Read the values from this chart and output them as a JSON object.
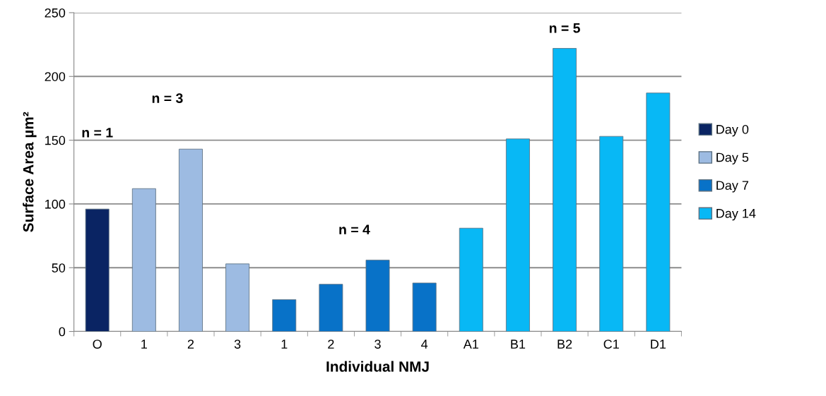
{
  "chart_data": {
    "type": "bar",
    "xlabel": "Individual NMJ",
    "ylabel": "Surface Area µm²",
    "categories": [
      "O",
      "1",
      "2",
      "3",
      "1",
      "2",
      "3",
      "4",
      "A1",
      "B1",
      "B2",
      "C1",
      "D1"
    ],
    "series": [
      {
        "name": "Day 0",
        "color": "#0a2463",
        "values": [
          96,
          null,
          null,
          null,
          null,
          null,
          null,
          null,
          null,
          null,
          null,
          null,
          null
        ]
      },
      {
        "name": "Day 5",
        "color": "#9dbbe2",
        "values": [
          null,
          112,
          143,
          53,
          null,
          null,
          null,
          null,
          null,
          null,
          null,
          null,
          null
        ]
      },
      {
        "name": "Day 7",
        "color": "#0872c8",
        "values": [
          null,
          null,
          null,
          null,
          25,
          37,
          56,
          38,
          null,
          null,
          null,
          null,
          null
        ]
      },
      {
        "name": "Day 14",
        "color": "#08b8f5",
        "values": [
          null,
          null,
          null,
          null,
          null,
          null,
          null,
          null,
          81,
          151,
          222,
          153,
          187
        ]
      }
    ],
    "annotations": [
      "n = 1",
      "n = 3",
      "n = 4",
      "n = 5"
    ],
    "ylim": [
      0,
      250
    ],
    "yticks": [
      0,
      50,
      100,
      150,
      200,
      250
    ],
    "grid": "y",
    "legend": "right"
  }
}
